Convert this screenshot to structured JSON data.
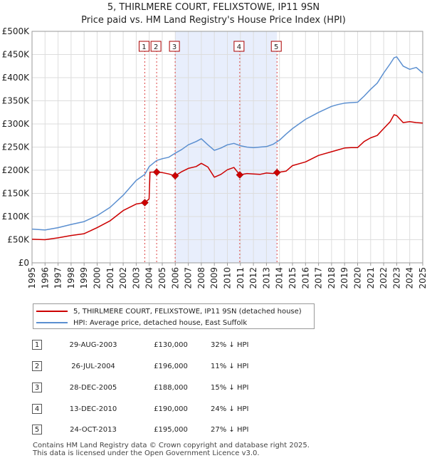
{
  "chart_data": {
    "type": "line",
    "title": "5, THIRLMERE COURT, FELIXSTOWE, IP11 9SN",
    "subtitle": "Price paid vs. HM Land Registry's House Price Index (HPI)",
    "xlabel": "",
    "ylabel": "",
    "xlim": [
      1995,
      2025
    ],
    "ylim": [
      0,
      500000
    ],
    "y_tick_labels": [
      "£0",
      "£50K",
      "£100K",
      "£150K",
      "£200K",
      "£250K",
      "£300K",
      "£350K",
      "£400K",
      "£450K",
      "£500K"
    ],
    "x_tick_labels": [
      "1995",
      "1996",
      "1997",
      "1998",
      "1999",
      "2000",
      "2001",
      "2002",
      "2003",
      "2004",
      "2005",
      "2006",
      "2007",
      "2008",
      "2009",
      "2010",
      "2011",
      "2012",
      "2013",
      "2014",
      "2015",
      "2016",
      "2017",
      "2018",
      "2019",
      "2020",
      "2021",
      "2022",
      "2023",
      "2024",
      "2025"
    ],
    "shaded_region": [
      2005.99,
      2013.81
    ],
    "series": [
      {
        "name": "5, THIRLMERE COURT, FELIXSTOWE, IP11 9SN (detached house)",
        "color": "#cc0000",
        "x": [
          1995,
          1996,
          1997,
          1998,
          1999,
          2000,
          2001,
          2002,
          2003,
          2003.66,
          2003.99,
          2004.06,
          2004.57,
          2005,
          2005.5,
          2005.99,
          2006.5,
          2007,
          2007.6,
          2008,
          2008.5,
          2009,
          2009.5,
          2010,
          2010.5,
          2010.95,
          2011.5,
          2012,
          2012.5,
          2013,
          2013.5,
          2013.81,
          2014.5,
          2015,
          2016,
          2017,
          2018,
          2018.5,
          2019,
          2019.5,
          2020,
          2020.5,
          2021,
          2021.5,
          2022,
          2022.5,
          2022.8,
          2023,
          2023.5,
          2024,
          2024.5,
          2025
        ],
        "values": [
          51000,
          50000,
          54000,
          59000,
          63000,
          76000,
          91000,
          113000,
          127000,
          130000,
          138000,
          196000,
          196000,
          195000,
          192000,
          188000,
          197000,
          204000,
          208000,
          215000,
          207000,
          185000,
          191000,
          201000,
          206000,
          190000,
          193000,
          192000,
          191000,
          194000,
          193000,
          195000,
          198000,
          210000,
          218000,
          232000,
          240000,
          244000,
          248000,
          249000,
          249000,
          262000,
          270000,
          275000,
          290000,
          305000,
          320000,
          318000,
          303000,
          305000,
          303000,
          302000
        ]
      },
      {
        "name": "HPI: Average price, detached house, East Suffolk",
        "color": "#5b8fd0",
        "x": [
          1995,
          1996,
          1997,
          1998,
          1999,
          2000,
          2001,
          2002,
          2003,
          2003.66,
          2004,
          2004.57,
          2005,
          2005.5,
          2006,
          2006.5,
          2007,
          2007.6,
          2008,
          2008.5,
          2009,
          2009.5,
          2010,
          2010.5,
          2011,
          2011.5,
          2012,
          2012.5,
          2013,
          2013.5,
          2014,
          2014.5,
          2015,
          2016,
          2017,
          2018,
          2018.5,
          2019,
          2019.5,
          2020,
          2020.5,
          2021,
          2021.5,
          2022,
          2022.5,
          2022.8,
          2023,
          2023.5,
          2024,
          2024.5,
          2025
        ],
        "values": [
          73000,
          71000,
          76000,
          83000,
          89000,
          102000,
          120000,
          146000,
          178000,
          191000,
          208000,
          221000,
          225000,
          228000,
          237000,
          245000,
          255000,
          262000,
          268000,
          255000,
          243000,
          248000,
          255000,
          258000,
          253000,
          250000,
          249000,
          250000,
          251000,
          256000,
          265000,
          278000,
          290000,
          310000,
          325000,
          338000,
          342000,
          345000,
          346000,
          347000,
          360000,
          375000,
          388000,
          410000,
          430000,
          443000,
          445000,
          425000,
          418000,
          422000,
          410000
        ]
      }
    ],
    "sales": [
      {
        "label": "1",
        "x": 2003.66,
        "value": 130000
      },
      {
        "label": "2",
        "x": 2004.57,
        "value": 196000
      },
      {
        "label": "3",
        "x": 2005.99,
        "value": 188000
      },
      {
        "label": "4",
        "x": 2010.95,
        "value": 190000
      },
      {
        "label": "5",
        "x": 2013.81,
        "value": 195000
      }
    ]
  },
  "table": [
    {
      "num": "1",
      "date": "29-AUG-2003",
      "price": "£130,000",
      "hpi": "32% ↓ HPI"
    },
    {
      "num": "2",
      "date": "26-JUL-2004",
      "price": "£196,000",
      "hpi": "11% ↓ HPI"
    },
    {
      "num": "3",
      "date": "28-DEC-2005",
      "price": "£188,000",
      "hpi": "15% ↓ HPI"
    },
    {
      "num": "4",
      "date": "13-DEC-2010",
      "price": "£190,000",
      "hpi": "24% ↓ HPI"
    },
    {
      "num": "5",
      "date": "24-OCT-2013",
      "price": "£195,000",
      "hpi": "27% ↓ HPI"
    }
  ],
  "footer": {
    "line1": "Contains HM Land Registry data © Crown copyright and database right 2025.",
    "line2": "This data is licensed under the Open Government Licence v3.0."
  }
}
